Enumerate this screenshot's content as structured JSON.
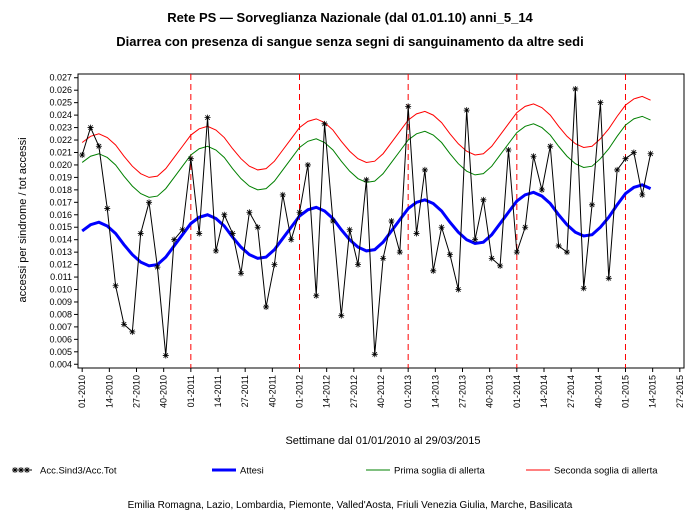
{
  "chart_data": {
    "type": "line",
    "title": "Rete PS — Sorveglianza Nazionale (dal 01.01.10) anni_5_14",
    "subtitle": "Diarrea con presenza di sangue senza segni di sanguinamento da altre sedi",
    "x_label": "Settimane dal 01/01/2010 al 29/03/2015",
    "y_label": "accessi per sindrome / tot accessi",
    "footnote": "Emilia Romagna, Lazio, Lombardia, Piemonte, Valled'Aosta, Friuli Venezia Giulia, Marche, Basilicata",
    "grid": false,
    "legend": "bottom",
    "year_lines": [
      52,
      104,
      156,
      208,
      260
    ],
    "year_line_color": "#ff0000",
    "xlim": [
      -2,
      288
    ],
    "xticks": [
      {
        "value": 0,
        "label": "01-2010"
      },
      {
        "value": 13,
        "label": "14-2010"
      },
      {
        "value": 26,
        "label": "27-2010"
      },
      {
        "value": 39,
        "label": "40-2010"
      },
      {
        "value": 52,
        "label": "01-2011"
      },
      {
        "value": 65,
        "label": "14-2011"
      },
      {
        "value": 78,
        "label": "27-2011"
      },
      {
        "value": 91,
        "label": "40-2011"
      },
      {
        "value": 104,
        "label": "01-2012"
      },
      {
        "value": 117,
        "label": "14-2012"
      },
      {
        "value": 130,
        "label": "27-2012"
      },
      {
        "value": 143,
        "label": "40-2012"
      },
      {
        "value": 156,
        "label": "01-2013"
      },
      {
        "value": 169,
        "label": "14-2013"
      },
      {
        "value": 182,
        "label": "27-2013"
      },
      {
        "value": 195,
        "label": "40-2013"
      },
      {
        "value": 208,
        "label": "01-2014"
      },
      {
        "value": 221,
        "label": "14-2014"
      },
      {
        "value": 234,
        "label": "27-2014"
      },
      {
        "value": 247,
        "label": "40-2014"
      },
      {
        "value": 260,
        "label": "01-2015"
      },
      {
        "value": 273,
        "label": "14-2015"
      },
      {
        "value": 286,
        "label": "27-2015"
      }
    ],
    "ylim": [
      0.0037,
      0.0273
    ],
    "yticks": [
      0.004,
      0.005,
      0.006,
      0.007,
      0.008,
      0.009,
      {
        "value": 0.01,
        "label": "0.010"
      },
      0.011,
      0.012,
      0.013,
      0.014,
      0.015,
      0.016,
      0.017,
      0.018,
      0.019,
      {
        "value": 0.02,
        "label": "0.020"
      },
      0.021,
      0.022,
      0.023,
      0.024,
      0.025,
      0.026,
      0.027
    ],
    "x": [
      0,
      4,
      8,
      12,
      16,
      20,
      24,
      28,
      32,
      36,
      40,
      44,
      48,
      52,
      56,
      60,
      64,
      68,
      72,
      76,
      80,
      84,
      88,
      92,
      96,
      100,
      104,
      108,
      112,
      116,
      120,
      124,
      128,
      132,
      136,
      140,
      144,
      148,
      152,
      156,
      160,
      164,
      168,
      172,
      176,
      180,
      184,
      188,
      192,
      196,
      200,
      204,
      208,
      212,
      216,
      220,
      224,
      228,
      232,
      236,
      240,
      244,
      248,
      252,
      256,
      260,
      264,
      268,
      272
    ],
    "series": [
      {
        "name": "Acc.Sind3/Acc.Tot",
        "color": "#000000",
        "marker": "star",
        "line_width": 1,
        "values": [
          0.0208,
          0.023,
          0.0215,
          0.0165,
          0.0103,
          0.0072,
          0.0066,
          0.0145,
          0.017,
          0.0118,
          0.0047,
          0.014,
          0.0148,
          0.0205,
          0.0145,
          0.0238,
          0.0131,
          0.016,
          0.0145,
          0.0113,
          0.0162,
          0.015,
          0.0086,
          0.012,
          0.0176,
          0.014,
          0.0162,
          0.02,
          0.0095,
          0.0233,
          0.0155,
          0.0079,
          0.0148,
          0.012,
          0.0188,
          0.0048,
          0.0125,
          0.0155,
          0.013,
          0.0247,
          0.0145,
          0.0196,
          0.0115,
          0.015,
          0.0128,
          0.01,
          0.0244,
          0.014,
          0.0172,
          0.0125,
          0.0119,
          0.0212,
          0.013,
          0.015,
          0.0207,
          0.018,
          0.0215,
          0.0135,
          0.013,
          0.0261,
          0.0101,
          0.0168,
          0.025,
          0.0109,
          0.0196,
          0.0205,
          0.021,
          0.0176,
          0.0209
        ]
      },
      {
        "name": "Attesi",
        "color": "#0000ff",
        "line_width": 3,
        "values": [
          0.0147,
          0.0152,
          0.0154,
          0.0151,
          0.0145,
          0.0136,
          0.0128,
          0.0122,
          0.0119,
          0.012,
          0.0126,
          0.0135,
          0.0144,
          0.0153,
          0.0158,
          0.016,
          0.0157,
          0.0151,
          0.0142,
          0.0134,
          0.0128,
          0.0125,
          0.0126,
          0.0132,
          0.0141,
          0.015,
          0.0159,
          0.0164,
          0.0166,
          0.0163,
          0.0157,
          0.0148,
          0.014,
          0.0134,
          0.0131,
          0.0132,
          0.0138,
          0.0147,
          0.0156,
          0.0165,
          0.017,
          0.0172,
          0.0169,
          0.0163,
          0.0154,
          0.0146,
          0.014,
          0.0137,
          0.0138,
          0.0144,
          0.0153,
          0.0162,
          0.0171,
          0.0176,
          0.0178,
          0.0175,
          0.0169,
          0.016,
          0.0152,
          0.0146,
          0.0143,
          0.0144,
          0.015,
          0.0158,
          0.0168,
          0.0177,
          0.0182,
          0.0184,
          0.0181
        ]
      },
      {
        "name": "Prima soglia di allerta",
        "color": "#008000",
        "line_width": 1,
        "values": [
          0.0202,
          0.0207,
          0.0209,
          0.0206,
          0.02,
          0.0191,
          0.0183,
          0.0177,
          0.0174,
          0.0175,
          0.0181,
          0.019,
          0.0199,
          0.0208,
          0.0213,
          0.0215,
          0.0212,
          0.0206,
          0.0197,
          0.0189,
          0.0183,
          0.018,
          0.0181,
          0.0187,
          0.0196,
          0.0205,
          0.0214,
          0.0219,
          0.0221,
          0.0218,
          0.0212,
          0.0203,
          0.0195,
          0.0189,
          0.0186,
          0.0187,
          0.0193,
          0.0202,
          0.0211,
          0.022,
          0.0225,
          0.0227,
          0.0224,
          0.0218,
          0.0209,
          0.0201,
          0.0195,
          0.0192,
          0.0193,
          0.0199,
          0.0208,
          0.0217,
          0.0226,
          0.0231,
          0.0233,
          0.023,
          0.0224,
          0.0215,
          0.0207,
          0.0201,
          0.0198,
          0.0199,
          0.0205,
          0.0213,
          0.0223,
          0.0232,
          0.0237,
          0.0239,
          0.0236
        ]
      },
      {
        "name": "Seconda soglia di allerta",
        "color": "#ff0000",
        "line_width": 1,
        "values": [
          0.0218,
          0.0223,
          0.0225,
          0.0222,
          0.0216,
          0.0207,
          0.0199,
          0.0193,
          0.019,
          0.0191,
          0.0197,
          0.0206,
          0.0215,
          0.0224,
          0.0229,
          0.0231,
          0.0228,
          0.0222,
          0.0213,
          0.0205,
          0.0199,
          0.0196,
          0.0197,
          0.0203,
          0.0212,
          0.0221,
          0.023,
          0.0235,
          0.0237,
          0.0234,
          0.0228,
          0.0219,
          0.0211,
          0.0205,
          0.0202,
          0.0203,
          0.0209,
          0.0218,
          0.0227,
          0.0236,
          0.0241,
          0.0243,
          0.024,
          0.0234,
          0.0225,
          0.0217,
          0.0211,
          0.0208,
          0.0209,
          0.0215,
          0.0224,
          0.0233,
          0.0242,
          0.0247,
          0.0249,
          0.0246,
          0.024,
          0.0231,
          0.0223,
          0.0217,
          0.0214,
          0.0215,
          0.0221,
          0.0229,
          0.0239,
          0.0248,
          0.0253,
          0.0255,
          0.0252
        ]
      }
    ]
  }
}
